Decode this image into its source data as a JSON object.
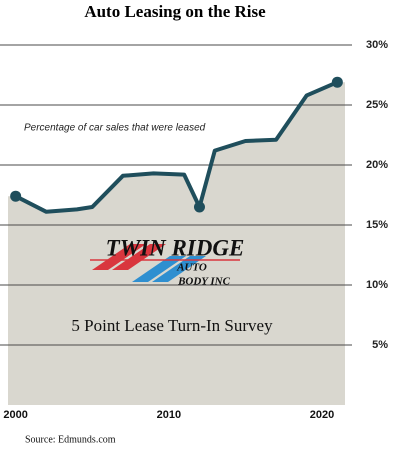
{
  "chart_data": {
    "type": "area",
    "title": "Auto Leasing on the Rise",
    "annotation": "Percentage of car sales that were leased",
    "logo": {
      "name": "TWIN RIDGE",
      "line1": "AUTO",
      "line2": "BODY INC"
    },
    "banner": "5 Point Lease Turn-In Survey",
    "source": "Source: Edmunds.com",
    "x": [
      2000,
      2002,
      2004,
      2005,
      2007,
      2009,
      2011,
      2012,
      2013,
      2015,
      2017,
      2019,
      2021
    ],
    "values": [
      17.4,
      16.1,
      16.3,
      16.5,
      19.1,
      19.3,
      19.2,
      16.5,
      21.2,
      22.0,
      22.1,
      25.8,
      26.9
    ],
    "markers": [
      0,
      7,
      12
    ],
    "color": "#1f4e5c",
    "fill": "#d9d7cf",
    "xlim": [
      1999.5,
      2021.5
    ],
    "xticks": [
      2000,
      2010,
      2020
    ],
    "ylim": [
      0,
      30
    ],
    "yticks": [
      {
        "value": 5,
        "label": "5%"
      },
      {
        "value": 10,
        "label": "10%"
      },
      {
        "value": 15,
        "label": "15%"
      },
      {
        "value": 20,
        "label": "20%"
      },
      {
        "value": 25,
        "label": "25%"
      },
      {
        "value": 30,
        "label": "30%"
      }
    ],
    "grid": true,
    "y_axis_side": "right"
  }
}
